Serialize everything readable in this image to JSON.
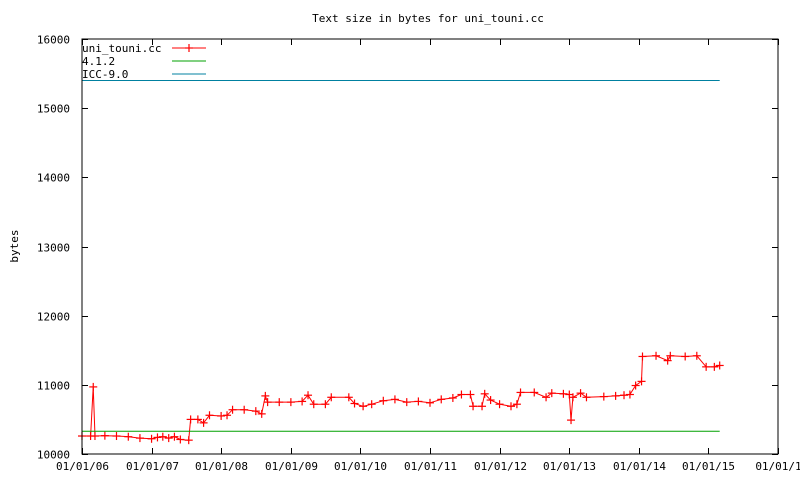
{
  "chart_data": {
    "type": "line",
    "title": "Text size in bytes for uni_touni.cc",
    "ylabel": "bytes",
    "xlabel": "",
    "ylim": [
      10000,
      16000
    ],
    "xlim": [
      "2006-01-01",
      "2016-01-01"
    ],
    "yticks": [
      10000,
      11000,
      12000,
      13000,
      14000,
      15000,
      16000
    ],
    "xticks": [
      {
        "date": "2006-01-01",
        "label": "01/01/06"
      },
      {
        "date": "2007-01-01",
        "label": "01/01/07"
      },
      {
        "date": "2008-01-01",
        "label": "01/01/08"
      },
      {
        "date": "2009-01-01",
        "label": "01/01/09"
      },
      {
        "date": "2010-01-01",
        "label": "01/01/10"
      },
      {
        "date": "2011-01-01",
        "label": "01/01/11"
      },
      {
        "date": "2012-01-01",
        "label": "01/01/12"
      },
      {
        "date": "2013-01-01",
        "label": "01/01/13"
      },
      {
        "date": "2014-01-01",
        "label": "01/01/14"
      },
      {
        "date": "2015-01-01",
        "label": "01/01/15"
      },
      {
        "date": "2016-01-01",
        "label": "01/01/1"
      }
    ],
    "legend_position": "top-left",
    "series": [
      {
        "name": "uni_touni.cc",
        "color": "#ff0000",
        "marker": "plus",
        "points": [
          [
            "2006-01-01",
            10260
          ],
          [
            "2006-02-15",
            10260
          ],
          [
            "2006-03-01",
            10970
          ],
          [
            "2006-03-10",
            10260
          ],
          [
            "2006-05-01",
            10265
          ],
          [
            "2006-07-01",
            10260
          ],
          [
            "2006-09-01",
            10250
          ],
          [
            "2006-11-01",
            10230
          ],
          [
            "2007-01-01",
            10220
          ],
          [
            "2007-02-01",
            10240
          ],
          [
            "2007-03-01",
            10250
          ],
          [
            "2007-04-01",
            10230
          ],
          [
            "2007-05-01",
            10250
          ],
          [
            "2007-06-01",
            10210
          ],
          [
            "2007-07-15",
            10200
          ],
          [
            "2007-07-25",
            10500
          ],
          [
            "2007-09-01",
            10500
          ],
          [
            "2007-10-01",
            10450
          ],
          [
            "2007-11-01",
            10560
          ],
          [
            "2008-01-01",
            10550
          ],
          [
            "2008-02-01",
            10560
          ],
          [
            "2008-03-01",
            10640
          ],
          [
            "2008-05-01",
            10640
          ],
          [
            "2008-07-01",
            10620
          ],
          [
            "2008-08-01",
            10580
          ],
          [
            "2008-08-20",
            10840
          ],
          [
            "2008-09-01",
            10750
          ],
          [
            "2008-11-01",
            10750
          ],
          [
            "2009-01-01",
            10750
          ],
          [
            "2009-03-01",
            10760
          ],
          [
            "2009-04-01",
            10850
          ],
          [
            "2009-05-01",
            10720
          ],
          [
            "2009-07-01",
            10720
          ],
          [
            "2009-08-01",
            10820
          ],
          [
            "2009-11-01",
            10820
          ],
          [
            "2009-12-01",
            10730
          ],
          [
            "2010-01-15",
            10690
          ],
          [
            "2010-03-01",
            10720
          ],
          [
            "2010-05-01",
            10770
          ],
          [
            "2010-07-01",
            10790
          ],
          [
            "2010-09-01",
            10750
          ],
          [
            "2010-11-01",
            10760
          ],
          [
            "2011-01-01",
            10740
          ],
          [
            "2011-03-01",
            10790
          ],
          [
            "2011-05-01",
            10810
          ],
          [
            "2011-06-15",
            10860
          ],
          [
            "2011-08-01",
            10860
          ],
          [
            "2011-08-15",
            10690
          ],
          [
            "2011-10-01",
            10690
          ],
          [
            "2011-10-15",
            10870
          ],
          [
            "2011-11-15",
            10780
          ],
          [
            "2012-01-01",
            10720
          ],
          [
            "2012-03-01",
            10690
          ],
          [
            "2012-04-01",
            10720
          ],
          [
            "2012-04-20",
            10890
          ],
          [
            "2012-07-01",
            10890
          ],
          [
            "2012-09-01",
            10820
          ],
          [
            "2012-10-01",
            10880
          ],
          [
            "2012-12-01",
            10870
          ],
          [
            "2013-01-01",
            10860
          ],
          [
            "2013-01-10",
            10490
          ],
          [
            "2013-01-20",
            10820
          ],
          [
            "2013-03-01",
            10880
          ],
          [
            "2013-04-01",
            10820
          ],
          [
            "2013-07-01",
            10830
          ],
          [
            "2013-09-01",
            10840
          ],
          [
            "2013-10-15",
            10850
          ],
          [
            "2013-11-15",
            10860
          ],
          [
            "2013-12-15",
            10990
          ],
          [
            "2014-01-15",
            11050
          ],
          [
            "2014-01-20",
            11410
          ],
          [
            "2014-04-01",
            11420
          ],
          [
            "2014-06-01",
            11350
          ],
          [
            "2014-06-15",
            11420
          ],
          [
            "2014-09-01",
            11410
          ],
          [
            "2014-11-01",
            11420
          ],
          [
            "2014-12-20",
            11260
          ],
          [
            "2015-02-01",
            11260
          ],
          [
            "2015-03-01",
            11280
          ]
        ]
      },
      {
        "name": "4.1.2",
        "color": "#00a000",
        "marker": "none",
        "points": [
          [
            "2006-01-01",
            10330
          ],
          [
            "2015-03-01",
            10330
          ]
        ]
      },
      {
        "name": "ICC-9.0",
        "color": "#0080a0",
        "marker": "none",
        "points": [
          [
            "2006-01-01",
            15400
          ],
          [
            "2015-03-01",
            15400
          ]
        ]
      }
    ]
  }
}
